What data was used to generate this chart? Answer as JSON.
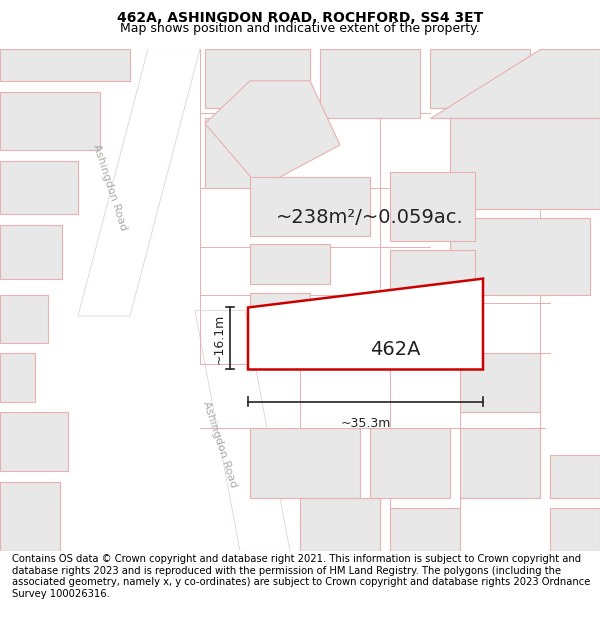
{
  "title_line1": "462A, ASHINGDON ROAD, ROCHFORD, SS4 3ET",
  "title_line2": "Map shows position and indicative extent of the property.",
  "footer_text": "Contains OS data © Crown copyright and database right 2021. This information is subject to Crown copyright and database rights 2023 and is reproduced with the permission of HM Land Registry. The polygons (including the associated geometry, namely x, y co-ordinates) are subject to Crown copyright and database rights 2023 Ordnance Survey 100026316.",
  "area_label": "~238m²/~0.059ac.",
  "plot_label": "462A",
  "dim_width": "~35.3m",
  "dim_height": "~16.1m",
  "map_bg": "#f7f5f3",
  "building_outline": "#e8b0b0",
  "building_fill": "#e8e8e8",
  "highlight_outline": "#cc0000",
  "highlight_fill": "#ffffff",
  "road_label_color": "#aaaaaa",
  "title_fontsize": 10,
  "subtitle_fontsize": 9,
  "footer_fontsize": 7.2,
  "area_fontsize": 14,
  "plot_label_fontsize": 14,
  "dim_fontsize": 9
}
